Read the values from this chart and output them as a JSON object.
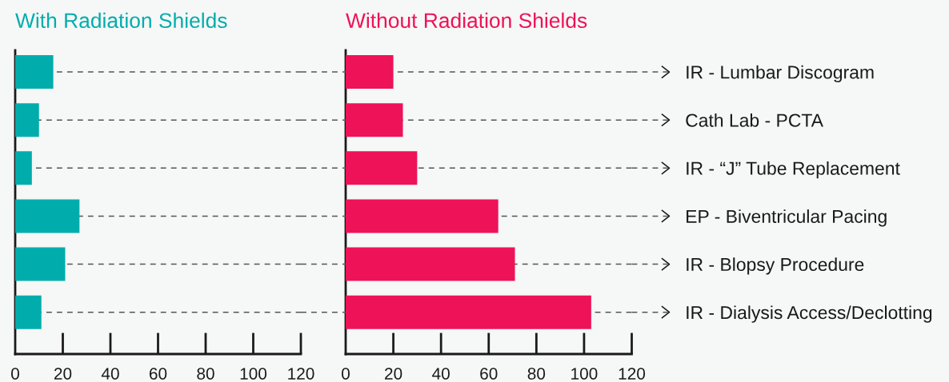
{
  "chart_data": [
    {
      "type": "bar",
      "orientation": "horizontal",
      "title": "With Radiation Shields",
      "categories": [
        null,
        null,
        null,
        null,
        null,
        null
      ],
      "values": [
        16,
        10,
        7,
        27,
        21,
        11
      ],
      "color": "#00adac",
      "xlim": [
        0,
        120
      ],
      "xticks": [
        0,
        20,
        40,
        60,
        80,
        100,
        120
      ],
      "grid": "y"
    },
    {
      "type": "bar",
      "orientation": "horizontal",
      "title": "Without Radiation Shields",
      "categories": [
        "IR - Lumbar Discogram",
        "Cath Lab - PCTA",
        "IR - “J” Tube Replacement",
        "EP - Biventricular Pacing",
        "IR - Blopsy Procedure",
        "IR - Dialysis Access/Declotting"
      ],
      "values": [
        20,
        24,
        30,
        64,
        71,
        103
      ],
      "color": "#ee1258",
      "xlim": [
        0,
        120
      ],
      "xticks": [
        0,
        20,
        40,
        60,
        80,
        100,
        120
      ],
      "grid": "y"
    }
  ]
}
